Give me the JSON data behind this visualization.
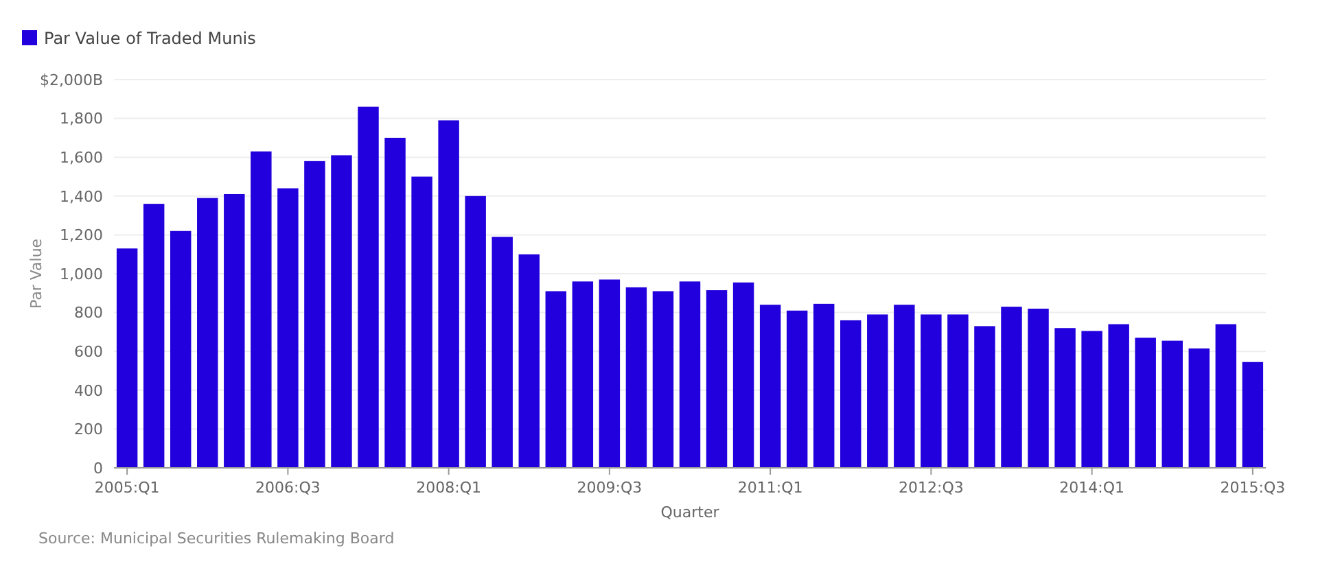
{
  "chart_data": {
    "type": "bar",
    "xlabel": "Quarter",
    "ylabel": "Par Value",
    "categories": [
      "2005:Q1",
      null,
      null,
      null,
      null,
      null,
      "2006:Q3",
      null,
      null,
      null,
      null,
      null,
      "2008:Q1",
      null,
      null,
      null,
      null,
      null,
      "2009:Q3",
      null,
      null,
      null,
      null,
      null,
      "2011:Q1",
      null,
      null,
      null,
      null,
      null,
      "2012:Q3",
      null,
      null,
      null,
      null,
      null,
      "2014:Q1",
      null,
      null,
      null,
      null,
      null,
      "2015:Q3"
    ],
    "series": [
      {
        "name": "Par Value of Traded Munis",
        "color": "#2200dd",
        "values": [
          1130,
          1360,
          1220,
          1390,
          1410,
          1630,
          1440,
          1580,
          1610,
          1860,
          1700,
          1500,
          1790,
          1400,
          1190,
          1100,
          910,
          960,
          970,
          930,
          910,
          960,
          915,
          955,
          840,
          810,
          845,
          760,
          790,
          840,
          790,
          790,
          730,
          830,
          820,
          720,
          705,
          740,
          670,
          655,
          615,
          740,
          545
        ]
      }
    ],
    "ylim": [
      0,
      2000
    ],
    "yticks": [
      0,
      200,
      400,
      600,
      800,
      {
        "value": 1000,
        "label": "1,000"
      },
      {
        "value": 1200,
        "label": "1,200"
      },
      {
        "value": 1400,
        "label": "1,400"
      },
      {
        "value": 1600,
        "label": "1,600"
      },
      {
        "value": 1800,
        "label": "1,800"
      },
      {
        "value": 2000,
        "label": "$2,000B"
      }
    ],
    "grid": "y",
    "legend": "top left",
    "annotations": [
      "Source: Municipal Securities Rulemaking Board"
    ]
  }
}
